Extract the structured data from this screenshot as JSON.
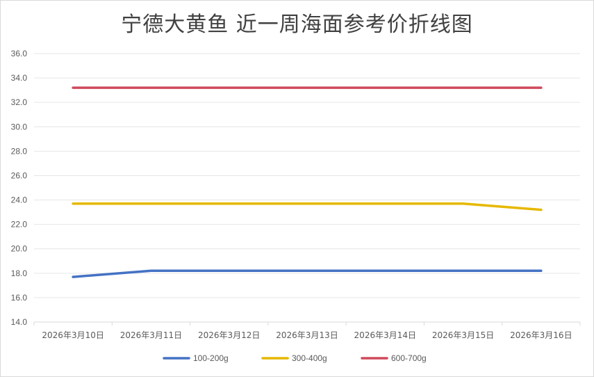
{
  "chart_data": {
    "type": "line",
    "title": "宁德大黄鱼 近一周海面参考价折线图",
    "categories": [
      "2026年3月10日",
      "2026年3月11日",
      "2026年3月12日",
      "2026年3月13日",
      "2026年3月14日",
      "2026年3月15日",
      "2026年3月16日"
    ],
    "ylim": [
      14.0,
      36.0
    ],
    "yticks": [
      "14.0",
      "16.0",
      "18.0",
      "20.0",
      "22.0",
      "24.0",
      "26.0",
      "28.0",
      "30.0",
      "32.0",
      "34.0",
      "36.0"
    ],
    "grid": true,
    "legend": "bottom",
    "series": [
      {
        "name": "100-200g",
        "color": "#4472c4",
        "values": [
          17.7,
          18.2,
          18.2,
          18.2,
          18.2,
          18.2,
          18.2
        ]
      },
      {
        "name": "300-400g",
        "color": "#e6b800",
        "values": [
          23.7,
          23.7,
          23.7,
          23.7,
          23.7,
          23.7,
          23.2
        ]
      },
      {
        "name": "600-700g",
        "color": "#d04a5c",
        "values": [
          33.2,
          33.2,
          33.2,
          33.2,
          33.2,
          33.2,
          33.2
        ]
      }
    ]
  }
}
